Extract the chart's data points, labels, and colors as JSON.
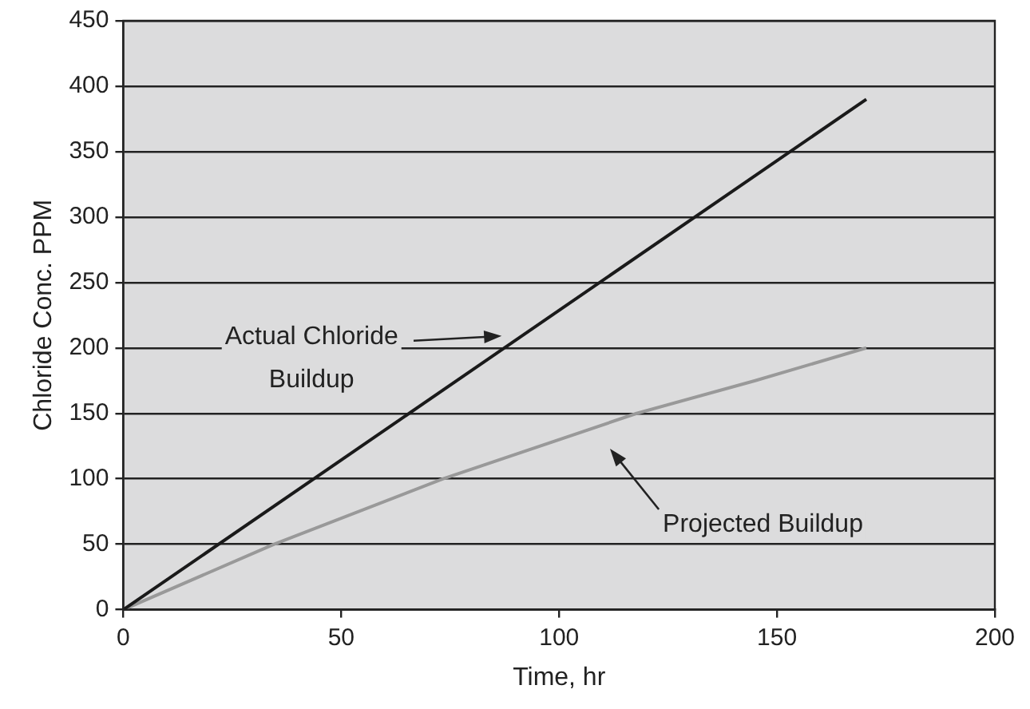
{
  "chart_data": {
    "type": "line",
    "xlabel": "Time, hr",
    "ylabel": "Chloride Conc. PPM",
    "xlim": [
      0,
      200
    ],
    "xticks": [
      0,
      50,
      100,
      150,
      200
    ],
    "ylim": [
      0,
      450
    ],
    "yticks": [
      0,
      50,
      100,
      150,
      200,
      250,
      300,
      350,
      400,
      450
    ],
    "grid": "y",
    "legend": false,
    "marker": "none",
    "line_style": "solid",
    "series": [
      {
        "color": "#1a1a1a",
        "x": [
          0,
          170.5
        ],
        "values": [
          0,
          390
        ]
      },
      {
        "color": "#999999",
        "x": [
          0,
          34.6,
          73.4,
          117.8,
          145,
          170.5
        ],
        "values": [
          0,
          50,
          100,
          150,
          175,
          200
        ]
      }
    ],
    "annotations": [
      "Actual Chloride Buildup",
      "Projected Buildup"
    ]
  }
}
